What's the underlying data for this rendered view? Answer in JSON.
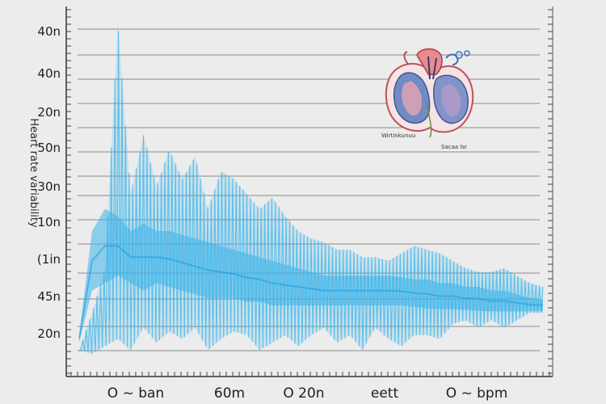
{
  "chart_data": {
    "type": "area",
    "title": "",
    "ylabel": "Heart rate variability",
    "xlabel": "",
    "y_tick_labels": [
      "40n",
      "40n",
      "20n",
      "50n",
      "30n",
      "10n",
      "(1in",
      "45n",
      "20n"
    ],
    "x_tick_labels": [
      "O ~ ban",
      "60m",
      "O 20n",
      "eett",
      "O ~ bpm"
    ],
    "grid": true,
    "legend": "none",
    "series": [
      {
        "color": "#3cb4ea",
        "envelope_top": [
          40,
          90,
          150,
          480,
          250,
          330,
          260,
          310,
          270,
          300,
          230,
          280,
          270,
          250,
          230,
          245,
          220,
          200,
          190,
          185,
          175,
          175,
          165,
          165,
          160,
          170,
          180,
          175,
          170,
          160,
          150,
          145,
          145,
          150,
          140,
          130,
          125
        ],
        "envelope_bottom": [
          40,
          35,
          45,
          55,
          40,
          70,
          50,
          65,
          55,
          70,
          40,
          55,
          65,
          60,
          40,
          50,
          60,
          45,
          60,
          70,
          50,
          60,
          40,
          70,
          55,
          45,
          60,
          60,
          55,
          75,
          80,
          70,
          80,
          70,
          80,
          90,
          90
        ],
        "band_top": [
          60,
          200,
          230,
          220,
          200,
          210,
          200,
          200,
          195,
          190,
          185,
          180,
          175,
          170,
          165,
          160,
          155,
          150,
          145,
          140,
          140,
          140,
          140,
          140,
          140,
          138,
          135,
          135,
          130,
          130,
          125,
          125,
          120,
          120,
          115,
          110,
          108
        ],
        "band_bottom": [
          50,
          120,
          130,
          140,
          130,
          120,
          130,
          125,
          120,
          115,
          110,
          110,
          110,
          105,
          105,
          100,
          100,
          100,
          100,
          100,
          100,
          100,
          100,
          100,
          100,
          100,
          98,
          96,
          95,
          95,
          94,
          93,
          92,
          92,
          92,
          92,
          92
        ]
      }
    ]
  },
  "illustration": {
    "icon": "heart-anatomy-icon",
    "caption_left": "Wirtinkunuu",
    "caption_right": "Sacaa lsr"
  }
}
